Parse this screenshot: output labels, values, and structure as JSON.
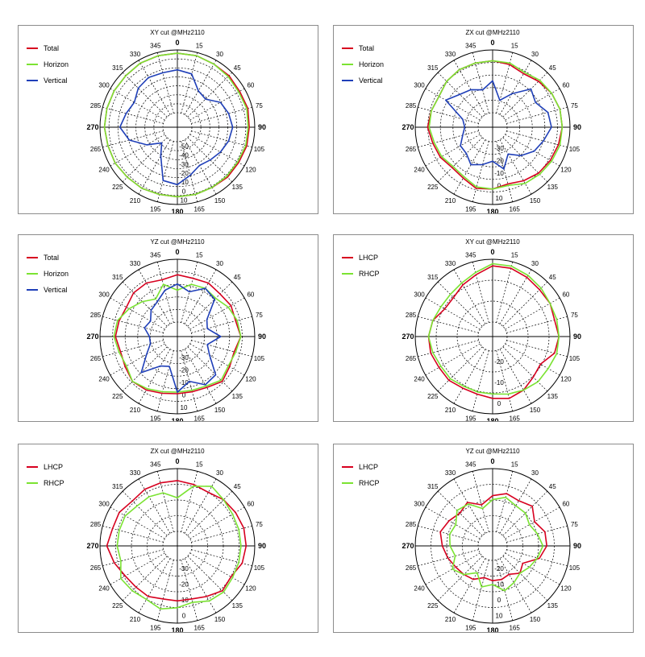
{
  "colors": {
    "red": "#d7001f",
    "green": "#7be332",
    "blue": "#1f3fb8"
  },
  "angle_labels": [
    "0",
    "15",
    "30",
    "45",
    "60",
    "75",
    "90",
    "105",
    "120",
    "135",
    "150",
    "165",
    "180",
    "195",
    "210",
    "225",
    "240",
    "265",
    "270",
    "285",
    "300",
    "315",
    "330",
    "345"
  ],
  "chart_data": [
    {
      "type": "polar",
      "title": "XY cut @MHz2110",
      "radial_ticks": [
        "-50",
        "-40",
        "-30",
        "-20",
        "-10",
        "0",
        "10"
      ],
      "rlim": [
        -60,
        10
      ],
      "series": [
        {
          "name": "Total",
          "color": "red",
          "values": [
            7,
            7,
            6,
            6,
            5,
            6,
            5,
            5,
            4,
            4,
            3,
            3,
            3,
            3,
            4,
            4,
            5,
            5,
            6,
            6,
            6,
            6,
            7,
            7
          ]
        },
        {
          "name": "Horizon",
          "color": "green",
          "values": [
            7,
            7,
            6,
            5,
            4,
            5,
            4,
            4,
            3,
            3,
            3,
            3,
            3,
            3,
            4,
            4,
            5,
            5,
            6,
            6,
            6,
            6,
            7,
            7
          ]
        },
        {
          "name": "Vertical",
          "color": "blue",
          "values": [
            -8,
            -10,
            -22,
            -24,
            -15,
            -12,
            -10,
            -12,
            -15,
            -18,
            -20,
            -15,
            -8,
            -10,
            -30,
            -40,
            -28,
            -15,
            -8,
            -12,
            -15,
            -10,
            -8,
            -9
          ]
        }
      ]
    },
    {
      "type": "polar",
      "title": "ZX cut @MHz2110",
      "radial_ticks": [
        "-30",
        "-20",
        "-10",
        "0",
        "10"
      ],
      "rlim": [
        -40,
        10
      ],
      "series": [
        {
          "name": "Total",
          "color": "red",
          "values": [
            3,
            2,
            0,
            2,
            4,
            5,
            5,
            4,
            3,
            2,
            0,
            -2,
            0,
            1,
            -2,
            -3,
            -1,
            0,
            2,
            1,
            0,
            2,
            3,
            3
          ]
        },
        {
          "name": "Horizon",
          "color": "green",
          "values": [
            3,
            3,
            1,
            3,
            4,
            5,
            5,
            5,
            4,
            3,
            2,
            -1,
            0,
            0,
            -3,
            -4,
            -2,
            -1,
            1,
            1,
            0,
            2,
            3,
            3
          ]
        },
        {
          "name": "Vertical",
          "color": "blue",
          "values": [
            -10,
            -22,
            -15,
            -5,
            -8,
            -3,
            -2,
            -6,
            -9,
            -14,
            -20,
            -12,
            -18,
            -15,
            -12,
            -16,
            -16,
            -20,
            -22,
            -20,
            -5,
            -10,
            -12,
            -15
          ]
        }
      ]
    },
    {
      "type": "polar",
      "title": "YZ cut @MHz2110",
      "radial_ticks": [
        "-30",
        "-20",
        "-10",
        "0",
        "10"
      ],
      "rlim": [
        -40,
        10
      ],
      "series": [
        {
          "name": "Total",
          "color": "red",
          "values": [
            0,
            -1,
            0,
            -1,
            0,
            -1,
            1,
            -2,
            -1,
            1,
            -2,
            -3,
            -3,
            -2,
            0,
            1,
            -1,
            -2,
            0,
            -1,
            -2,
            0,
            0,
            -2
          ]
        },
        {
          "name": "Horizon",
          "color": "green",
          "values": [
            -10,
            -5,
            -4,
            -5,
            -2,
            0,
            1,
            -1,
            -2,
            0,
            -3,
            -4,
            -4,
            -3,
            -1,
            1,
            -2,
            -1,
            1,
            0,
            -4,
            -8,
            -12,
            -5
          ]
        },
        {
          "name": "Vertical",
          "color": "blue",
          "values": [
            -6,
            -10,
            -4,
            -6,
            -18,
            -20,
            -12,
            -20,
            -16,
            -5,
            -4,
            -10,
            -4,
            -20,
            -18,
            -7,
            -17,
            -22,
            -22,
            -18,
            -20,
            -16,
            -14,
            -9
          ]
        }
      ]
    },
    {
      "type": "polar",
      "title": "XY cut @MHz2110",
      "radial_ticks": [
        "-20",
        "-10",
        "0"
      ],
      "rlim": [
        -30,
        5
      ],
      "series": [
        {
          "name": "LHCP",
          "color": "red",
          "values": [
            2,
            2,
            1,
            0,
            0,
            -1,
            0,
            -1,
            -5,
            -4,
            -2,
            -1,
            -2,
            -3,
            -3,
            -2,
            -2,
            -1,
            -1,
            -2,
            -5,
            -5,
            -3,
            -1
          ]
        },
        {
          "name": "RHCP",
          "color": "green",
          "values": [
            3,
            3,
            2,
            1,
            0,
            0,
            0,
            0,
            -1,
            -1,
            -2,
            -3,
            -4,
            -4,
            -4,
            -3,
            -3,
            -2,
            -1,
            -2,
            -3,
            -3,
            -2,
            0
          ]
        }
      ]
    },
    {
      "type": "polar",
      "title": "ZX cut @MHz2110",
      "radial_ticks": [
        "-30",
        "-20",
        "-10",
        "0"
      ],
      "rlim": [
        -40,
        5
      ],
      "series": [
        {
          "name": "LHCP",
          "color": "red",
          "values": [
            -2,
            -3,
            -4,
            -2,
            -1,
            0,
            0,
            -1,
            -4,
            -3,
            -6,
            -8,
            -8,
            -8,
            -6,
            -6,
            -5,
            -2,
            1,
            -1,
            -1,
            -3,
            -2,
            -2
          ]
        },
        {
          "name": "RHCP",
          "color": "green",
          "values": [
            -12,
            -4,
            0,
            -2,
            -3,
            -3,
            -3,
            -3,
            -3,
            -2,
            -3,
            -6,
            -4,
            -2,
            -4,
            -3,
            -2,
            -6,
            -5,
            -5,
            -5,
            -7,
            -7,
            -8
          ]
        }
      ]
    },
    {
      "type": "polar",
      "title": "YZ cut @MHz2110",
      "radial_ticks": [
        "-20",
        "-10",
        "0",
        "10"
      ],
      "rlim": [
        -30,
        10
      ],
      "series": [
        {
          "name": "LHCP",
          "color": "red",
          "values": [
            -4,
            -2,
            -3,
            -1,
            -5,
            -2,
            -2,
            -5,
            -12,
            -10,
            -13,
            -12,
            -12,
            -13,
            -10,
            -9,
            -8,
            -6,
            -4,
            -2,
            -4,
            -6,
            -4,
            -8
          ]
        },
        {
          "name": "RHCP",
          "color": "green",
          "values": [
            -6,
            -4,
            -6,
            -6,
            -8,
            -6,
            -4,
            -6,
            -8,
            -10,
            -8,
            -6,
            -10,
            -8,
            -14,
            -9,
            -6,
            -10,
            -8,
            -7,
            -8,
            -4,
            -5,
            -10
          ]
        }
      ]
    }
  ]
}
